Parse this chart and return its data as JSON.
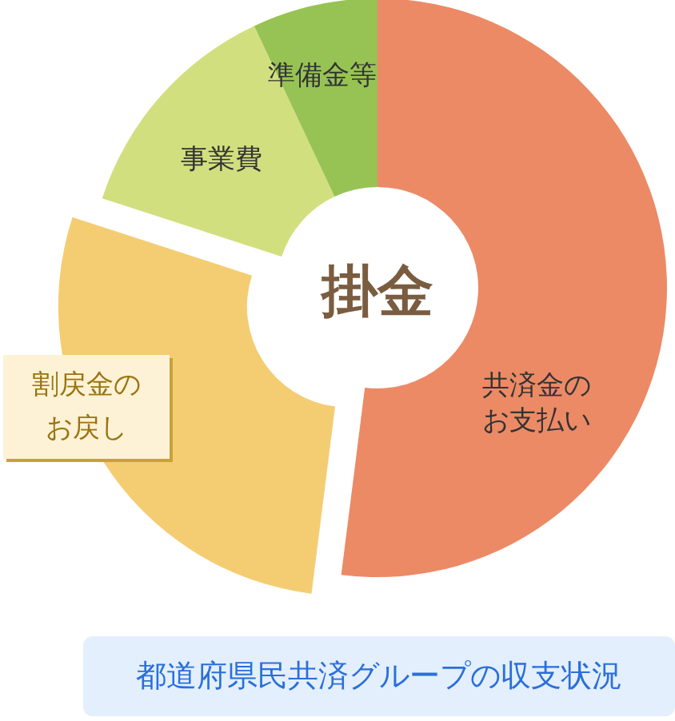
{
  "chart_data": {
    "type": "donut",
    "title": "都道府県民共済グループの収支状況",
    "annotations": [
      "掛金"
    ],
    "categories": [
      "共済金のお支払い",
      "割戻金のお戻し",
      "事業費",
      "準備金等"
    ],
    "values": [
      52,
      28,
      13,
      7
    ],
    "colors": [
      "#ec8a66",
      "#f4cd73",
      "#d2df7f",
      "#97c354"
    ]
  }
}
